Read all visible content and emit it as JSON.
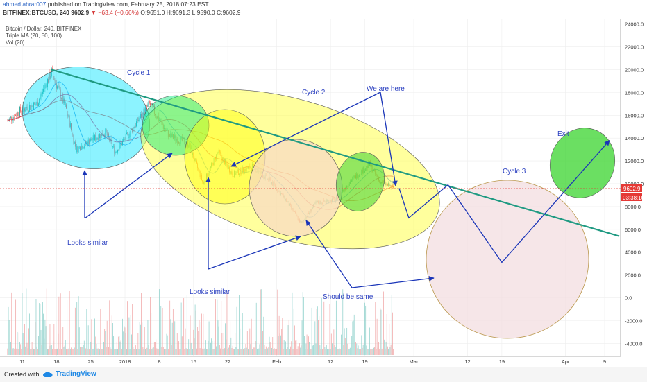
{
  "header": {
    "user": "ahmed.abrar007",
    "published": "published on TradingView.com, February 25, 2018 07:23 EST",
    "symbol": "BITFINEX:BTCUSD, 240",
    "last": "9602.9",
    "change": "▼ −63.4 (−0.66%)",
    "ohlc": "O:9651.0 H:9691.3 L:9590.0 C:9602.9"
  },
  "legend": {
    "title": "Bitcoin / Dollar, 240, BITFINEX",
    "ma": "Triple MA (20, 50, 100)",
    "vol": "Vol (20)"
  },
  "price_tag": "9602.9",
  "time_tag": "03:38:10",
  "annotations": {
    "cycle1": "Cycle 1",
    "cycle2": "Cycle 2",
    "cycle3": "Cycle 3",
    "we_are_here": "We are here",
    "exit": "Exit",
    "looks_similar_1": "Looks similar",
    "looks_similar_2": "Looks similar",
    "should_be_same": "Should be same"
  },
  "footer": {
    "created": "Created with",
    "brand": "TradingView"
  },
  "colors": {
    "up": "#26a69a",
    "down": "#ef5350",
    "trend": "#1f9a82",
    "arrow": "#1a35b8",
    "label": "#2a3fc0"
  },
  "chart_data": {
    "type": "candlestick",
    "y_ticks": [
      24000,
      22000,
      20000,
      18000,
      16000,
      14000,
      12000,
      10000,
      8000,
      6000,
      4000,
      2000,
      0,
      -2000,
      -4000
    ],
    "y_tick_labels": [
      "24000.0",
      "22000.0",
      "20000.0",
      "18000.0",
      "16000.0",
      "14000.0",
      "12000.0",
      "10000.0",
      "8000.0",
      "6000.0",
      "4000.0",
      "2000.0",
      "0.0",
      "-2000.0",
      "-4000.0"
    ],
    "x_tick_labels": [
      "11",
      "18",
      "25",
      "2018",
      "8",
      "15",
      "22",
      "Feb",
      "12",
      "19",
      "Mar",
      "12",
      "19",
      "Apr",
      "9"
    ],
    "price_anchors": [
      {
        "date": "2017-12-08",
        "close": 15500
      },
      {
        "date": "2017-12-11",
        "close": 16500
      },
      {
        "date": "2017-12-14",
        "close": 17000
      },
      {
        "date": "2017-12-17",
        "close": 19800
      },
      {
        "date": "2017-12-20",
        "close": 16500
      },
      {
        "date": "2017-12-22",
        "close": 13000
      },
      {
        "date": "2017-12-25",
        "close": 13800
      },
      {
        "date": "2017-12-28",
        "close": 14500
      },
      {
        "date": "2017-12-30",
        "close": 12800
      },
      {
        "date": "2018-01-02",
        "close": 14500
      },
      {
        "date": "2018-01-06",
        "close": 17000
      },
      {
        "date": "2018-01-10",
        "close": 14200
      },
      {
        "date": "2018-01-14",
        "close": 13500
      },
      {
        "date": "2018-01-17",
        "close": 10000
      },
      {
        "date": "2018-01-20",
        "close": 12800
      },
      {
        "date": "2018-01-23",
        "close": 10800
      },
      {
        "date": "2018-01-27",
        "close": 11500
      },
      {
        "date": "2018-01-31",
        "close": 10100
      },
      {
        "date": "2018-02-03",
        "close": 8500
      },
      {
        "date": "2018-02-06",
        "close": 6500
      },
      {
        "date": "2018-02-09",
        "close": 8300
      },
      {
        "date": "2018-02-13",
        "close": 8600
      },
      {
        "date": "2018-02-16",
        "close": 10200
      },
      {
        "date": "2018-02-20",
        "close": 11700
      },
      {
        "date": "2018-02-22",
        "close": 10200
      },
      {
        "date": "2018-02-25",
        "close": 9603
      }
    ],
    "trend_line": [
      {
        "date": "2017-12-17",
        "price": 20000
      },
      {
        "date": "2018-04-12",
        "price": 5400
      }
    ],
    "projection": [
      {
        "date": "2018-02-26",
        "price": 9600
      },
      {
        "date": "2018-02-28",
        "price": 7000
      },
      {
        "date": "2018-03-08",
        "price": 9900
      },
      {
        "date": "2018-03-19",
        "price": 3100
      },
      {
        "date": "2018-04-10",
        "price": 13800
      }
    ]
  }
}
